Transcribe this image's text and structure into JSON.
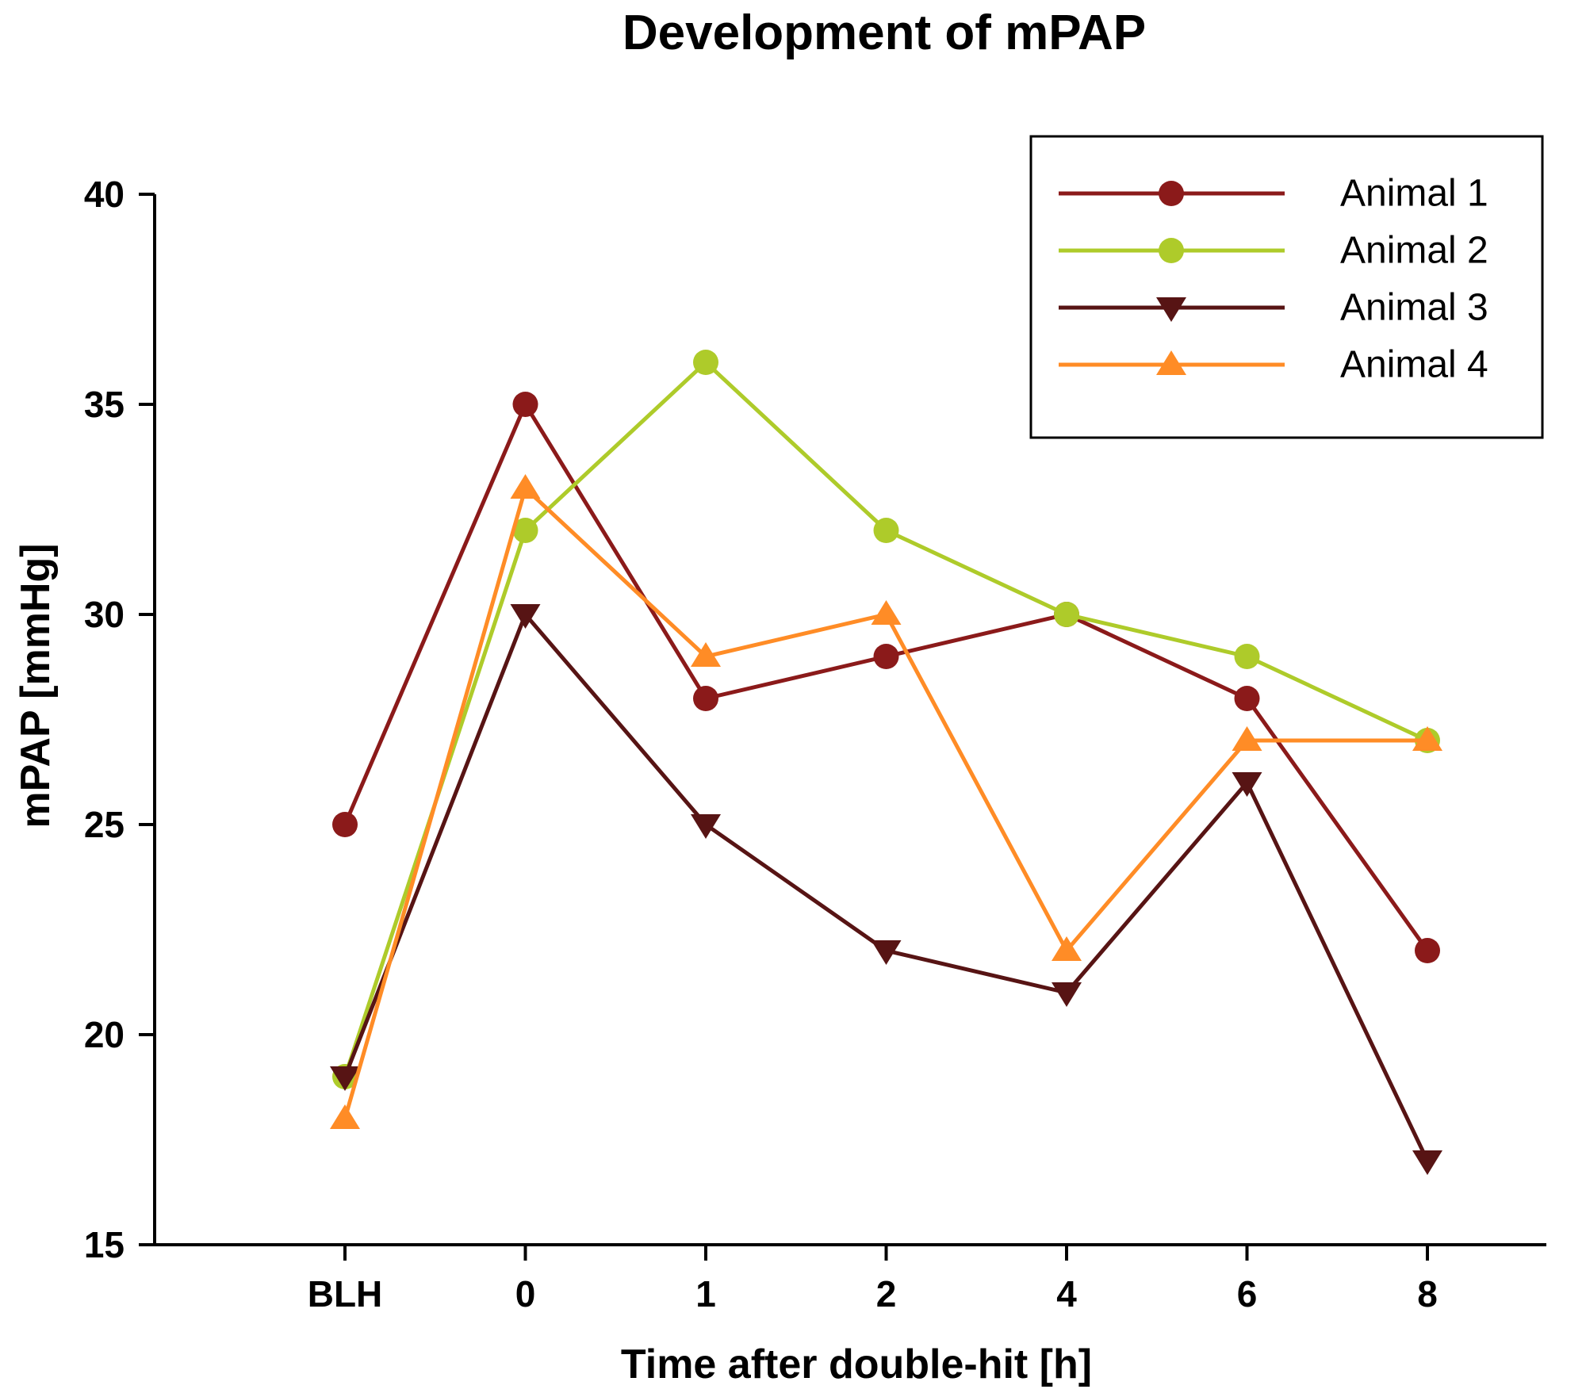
{
  "chart_data": {
    "type": "line",
    "title": "Development of mPAP",
    "xlabel": "Time after double-hit [h]",
    "ylabel": "mPAP [mmHg]",
    "categories": [
      "BLH",
      "0",
      "1",
      "2",
      "4",
      "6",
      "8"
    ],
    "ylim": [
      15,
      40
    ],
    "yticks": [
      15,
      20,
      25,
      30,
      35,
      40
    ],
    "grid": false,
    "legend_position": "top-right",
    "series": [
      {
        "name": "Animal 1",
        "color": "#8B1A1A",
        "marker": "circle",
        "values": [
          25,
          35,
          28,
          29,
          30,
          28,
          22
        ]
      },
      {
        "name": "Animal 2",
        "color": "#AECB2A",
        "marker": "circle",
        "values": [
          19,
          32,
          36,
          32,
          30,
          29,
          27
        ]
      },
      {
        "name": "Animal 3",
        "color": "#571414",
        "marker": "triangle-down",
        "values": [
          19,
          30,
          25,
          22,
          21,
          26,
          17
        ]
      },
      {
        "name": "Animal 4",
        "color": "#FF8C26",
        "marker": "triangle-up",
        "values": [
          18,
          33,
          29,
          30,
          22,
          27,
          27
        ]
      }
    ]
  }
}
